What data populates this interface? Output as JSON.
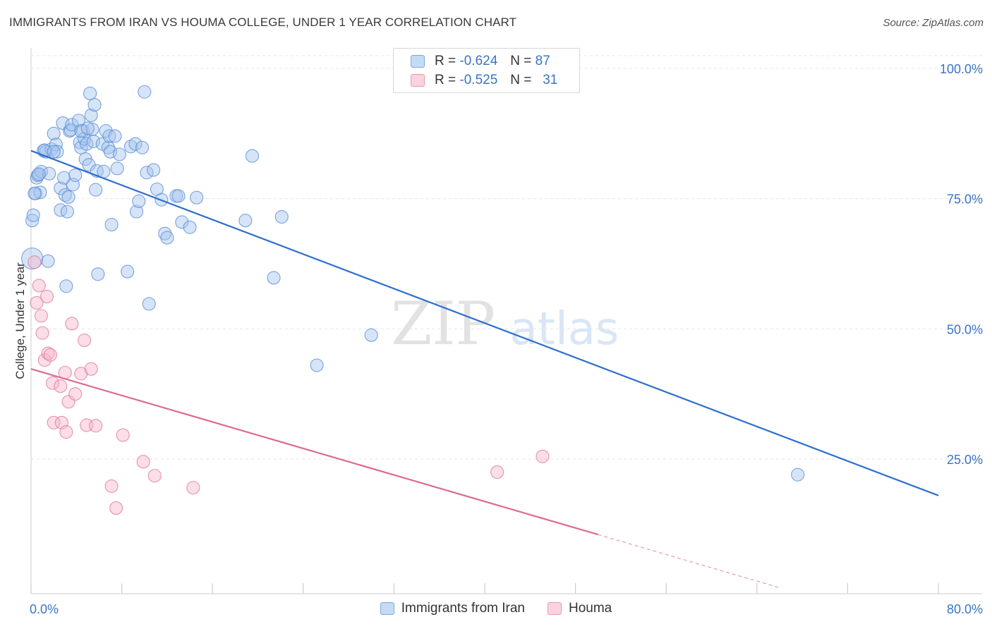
{
  "title": "IMMIGRANTS FROM IRAN VS HOUMA COLLEGE, UNDER 1 YEAR CORRELATION CHART",
  "source": "Source: ZipAtlas.com",
  "watermark": {
    "zip": "ZIP",
    "atlas": "atlas"
  },
  "legend": {
    "rows": [
      {
        "r_label": "R =",
        "r_value": "-0.624",
        "n_label": "N =",
        "n_value": "87",
        "color": "#7aa8e0",
        "fill": "#c5dbf5"
      },
      {
        "r_label": "R =",
        "r_value": "-0.525",
        "n_label": "N =",
        "n_value": "31",
        "color": "#e896b0",
        "fill": "#fbd3df"
      }
    ]
  },
  "series_names": [
    "Immigrants from Iran",
    "Houma"
  ],
  "chart_data": {
    "type": "scatter",
    "title": "IMMIGRANTS FROM IRAN VS HOUMA COLLEGE, UNDER 1 YEAR CORRELATION CHART",
    "xlabel": "",
    "ylabel": "College, Under 1 year",
    "xlim": [
      0,
      80
    ],
    "ylim": [
      0,
      105
    ],
    "x_tick_labels": [
      "0.0%",
      "80.0%"
    ],
    "y_ticks": [
      25,
      50,
      75,
      100
    ],
    "y_tick_labels": [
      "25.0%",
      "50.0%",
      "75.0%",
      "100.0%"
    ],
    "series": [
      {
        "name": "Immigrants from Iran",
        "color": "#5b8fd6",
        "fill": "rgba(164,196,238,0.45)",
        "trend": {
          "x0": 0,
          "y0": 84.2,
          "x1": 80,
          "y1": 18.0
        },
        "points": [
          [
            0.1,
            63.5
          ],
          [
            0.1,
            70.8
          ],
          [
            0.2,
            71.8
          ],
          [
            0.4,
            76.0
          ],
          [
            0.5,
            79.0
          ],
          [
            0.6,
            79.5
          ],
          [
            0.8,
            76.2
          ],
          [
            0.9,
            80.2
          ],
          [
            1.1,
            84.2
          ],
          [
            1.3,
            84.0
          ],
          [
            1.6,
            79.8
          ],
          [
            1.5,
            63.0
          ],
          [
            1.8,
            84.5
          ],
          [
            2.0,
            87.5
          ],
          [
            2.2,
            85.4
          ],
          [
            2.3,
            84.0
          ],
          [
            2.6,
            77.0
          ],
          [
            2.6,
            72.8
          ],
          [
            2.8,
            89.5
          ],
          [
            2.9,
            79.0
          ],
          [
            3.0,
            75.7
          ],
          [
            3.1,
            58.2
          ],
          [
            3.2,
            72.5
          ],
          [
            3.3,
            75.3
          ],
          [
            3.4,
            88.0
          ],
          [
            3.5,
            88.2
          ],
          [
            3.6,
            89.2
          ],
          [
            3.7,
            77.7
          ],
          [
            3.9,
            79.5
          ],
          [
            4.2,
            90.0
          ],
          [
            4.3,
            85.8
          ],
          [
            4.4,
            84.8
          ],
          [
            4.6,
            88.0
          ],
          [
            4.7,
            86.5
          ],
          [
            4.8,
            82.6
          ],
          [
            4.9,
            85.5
          ],
          [
            5.1,
            81.5
          ],
          [
            5.2,
            95.2
          ],
          [
            5.3,
            91.0
          ],
          [
            5.4,
            88.3
          ],
          [
            5.5,
            86.0
          ],
          [
            5.6,
            93.0
          ],
          [
            5.7,
            76.7
          ],
          [
            5.8,
            80.3
          ],
          [
            5.9,
            60.5
          ],
          [
            6.3,
            85.5
          ],
          [
            6.4,
            80.2
          ],
          [
            6.6,
            88.0
          ],
          [
            6.8,
            84.8
          ],
          [
            6.9,
            87.0
          ],
          [
            7.0,
            84.0
          ],
          [
            7.1,
            70.0
          ],
          [
            7.4,
            87.0
          ],
          [
            7.6,
            80.8
          ],
          [
            7.8,
            83.5
          ],
          [
            8.5,
            61.0
          ],
          [
            8.8,
            85.0
          ],
          [
            9.2,
            85.5
          ],
          [
            9.3,
            72.5
          ],
          [
            9.5,
            74.5
          ],
          [
            9.8,
            84.8
          ],
          [
            10.0,
            95.5
          ],
          [
            10.2,
            80.0
          ],
          [
            10.4,
            54.8
          ],
          [
            10.8,
            80.5
          ],
          [
            11.1,
            76.8
          ],
          [
            11.5,
            74.8
          ],
          [
            11.8,
            68.3
          ],
          [
            12.0,
            67.5
          ],
          [
            12.8,
            75.5
          ],
          [
            13.0,
            75.5
          ],
          [
            13.3,
            70.5
          ],
          [
            14.0,
            69.5
          ],
          [
            14.6,
            75.2
          ],
          [
            18.9,
            70.8
          ],
          [
            19.5,
            83.2
          ],
          [
            21.4,
            59.8
          ],
          [
            22.1,
            71.5
          ],
          [
            25.2,
            43.0
          ],
          [
            30.0,
            48.8
          ],
          [
            67.6,
            22.0
          ],
          [
            0.3,
            76.0
          ],
          [
            1.2,
            84.3
          ],
          [
            2.0,
            84.0
          ],
          [
            4.4,
            88.0
          ],
          [
            0.7,
            79.7
          ],
          [
            5.0,
            88.5
          ]
        ]
      },
      {
        "name": "Houma",
        "color": "#e07a9c",
        "fill": "rgba(246,182,202,0.45)",
        "trend": {
          "x0": 0,
          "y0": 42.3,
          "x1": 50,
          "y1": 10.5
        },
        "trend_dashed": {
          "x0": 50,
          "y0": 10.5,
          "x1": 66,
          "y1": 0.3
        },
        "points": [
          [
            0.3,
            62.8
          ],
          [
            0.5,
            55.0
          ],
          [
            0.7,
            58.3
          ],
          [
            0.9,
            52.5
          ],
          [
            1.0,
            49.2
          ],
          [
            1.2,
            44.0
          ],
          [
            1.4,
            56.2
          ],
          [
            1.5,
            45.3
          ],
          [
            1.7,
            45.0
          ],
          [
            1.9,
            39.6
          ],
          [
            2.0,
            32.0
          ],
          [
            2.6,
            39.0
          ],
          [
            2.7,
            32.0
          ],
          [
            3.0,
            41.6
          ],
          [
            3.1,
            30.2
          ],
          [
            3.3,
            36.0
          ],
          [
            3.6,
            51.0
          ],
          [
            3.9,
            37.5
          ],
          [
            4.4,
            41.4
          ],
          [
            4.7,
            47.8
          ],
          [
            4.9,
            31.5
          ],
          [
            5.3,
            42.3
          ],
          [
            5.7,
            31.4
          ],
          [
            7.1,
            19.8
          ],
          [
            7.5,
            15.6
          ],
          [
            8.1,
            29.6
          ],
          [
            9.9,
            24.5
          ],
          [
            10.9,
            21.8
          ],
          [
            14.3,
            19.5
          ],
          [
            41.1,
            22.5
          ],
          [
            45.1,
            25.5
          ]
        ]
      }
    ]
  }
}
